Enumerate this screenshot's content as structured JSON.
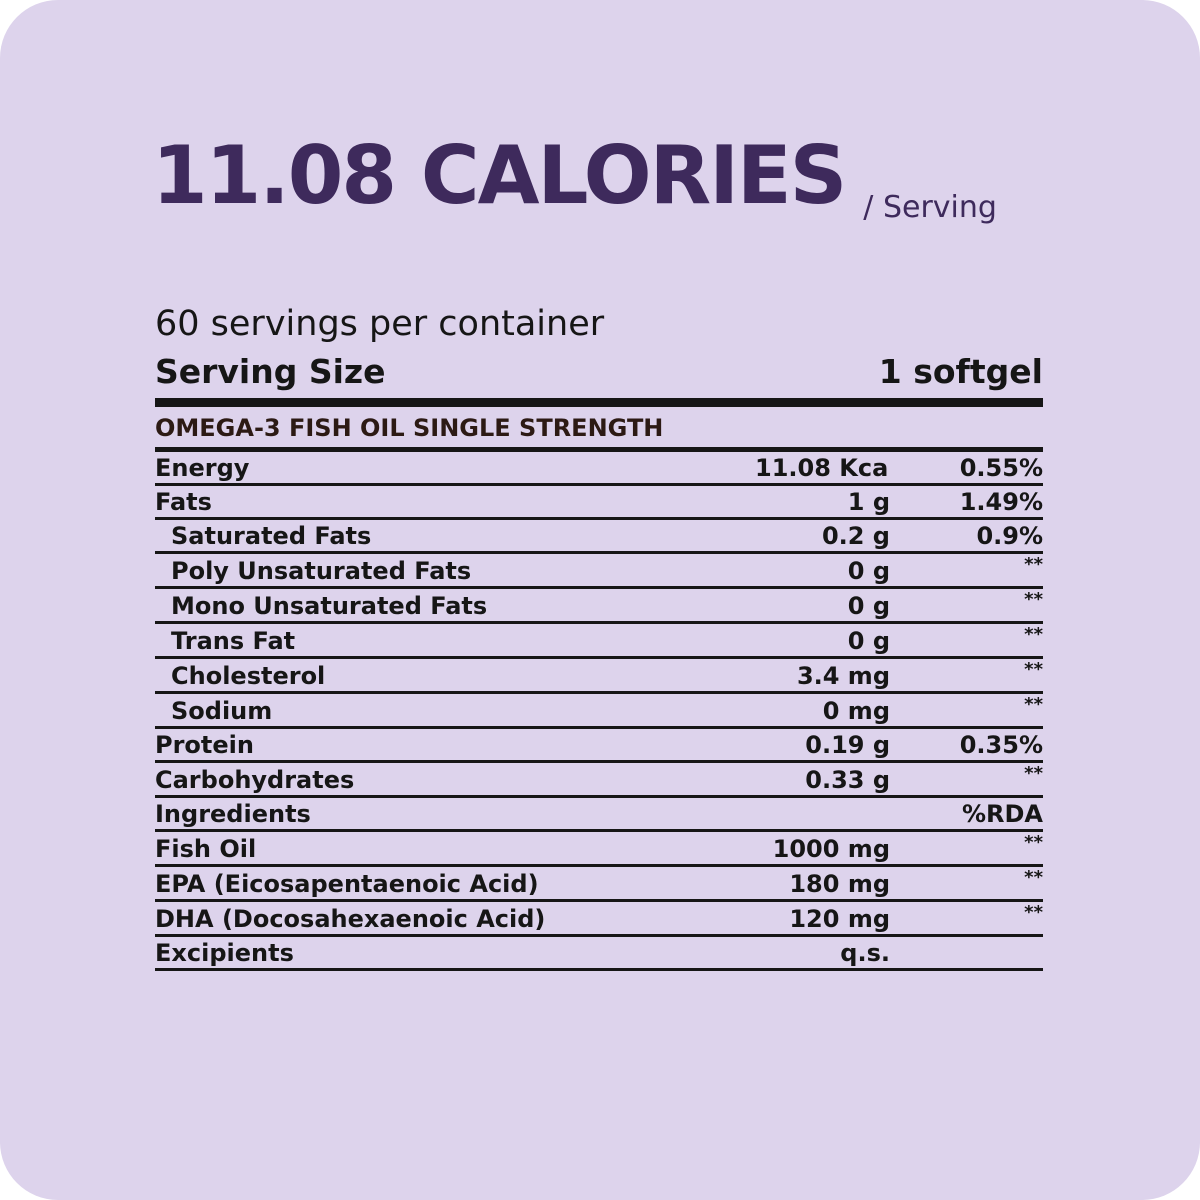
{
  "header": {
    "calories": "11.08 CALORIES",
    "per_serving": "/ Serving"
  },
  "label": {
    "servings_per_container": "60 servings per container",
    "serving_size_label": "Serving Size",
    "serving_size_value": "1 softgel",
    "product_name": "OMEGA-3 FISH OIL SINGLE STRENGTH"
  },
  "rows": [
    {
      "name": "Energy",
      "amount": "11.08 Kcal",
      "rda": "0.55%"
    },
    {
      "name": "Fats",
      "amount": "1 g",
      "rda": "1.49%"
    },
    {
      "name": "Saturated Fats",
      "amount": "0.2 g",
      "rda": "0.9%"
    },
    {
      "name": "Poly Unsaturated Fats",
      "amount": "0 g",
      "rda": "**"
    },
    {
      "name": "Mono Unsaturated Fats",
      "amount": "0 g",
      "rda": "**"
    },
    {
      "name": "Trans Fat",
      "amount": "0 g",
      "rda": "**"
    },
    {
      "name": "Cholesterol",
      "amount": "3.4 mg",
      "rda": "**"
    },
    {
      "name": "Sodium",
      "amount": "0 mg",
      "rda": "**"
    },
    {
      "name": "Protein",
      "amount": "0.19 g",
      "rda": "0.35%"
    },
    {
      "name": "Carbohydrates",
      "amount": "0.33 g",
      "rda": "**"
    },
    {
      "name": "Ingredients",
      "amount": "",
      "rda": "%RDA"
    },
    {
      "name": "Fish Oil",
      "amount": "1000 mg",
      "rda": "**"
    },
    {
      "name": "EPA (Eicosapentaenoic Acid)",
      "amount": "180 mg",
      "rda": "**"
    },
    {
      "name": "DHA (Docosahexaenoic Acid)",
      "amount": "120 mg",
      "rda": "**"
    },
    {
      "name": "Excipients",
      "amount": "q.s.",
      "rda": ""
    }
  ]
}
